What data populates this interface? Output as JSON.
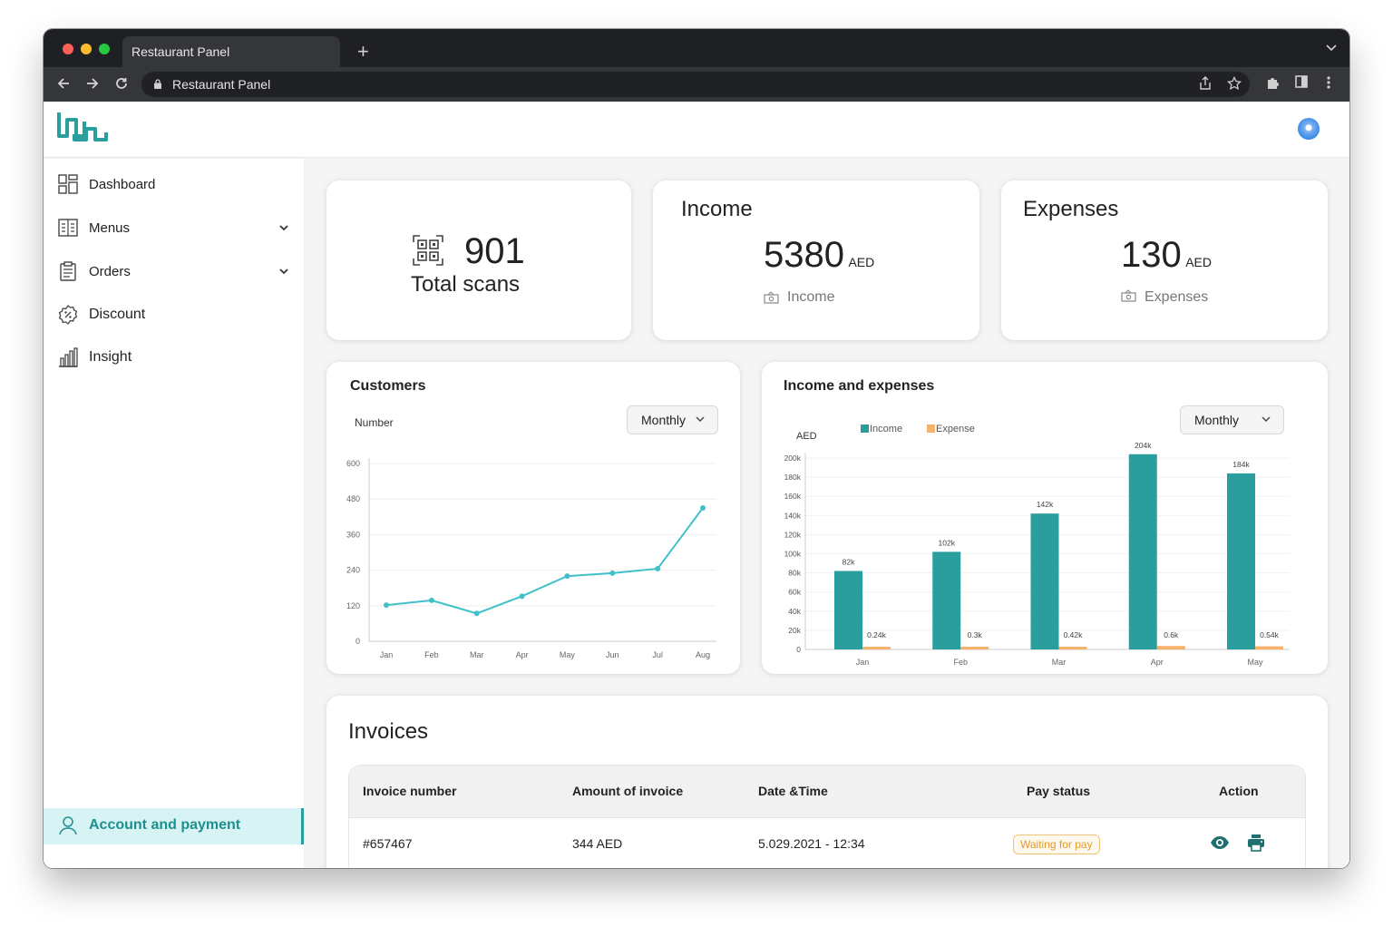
{
  "browser": {
    "tab_title": "Restaurant Panel",
    "url": "Restaurant Panel",
    "new_tab": "+",
    "tab_menu": "⌄"
  },
  "sidebar": {
    "items": [
      {
        "label": "Dashboard",
        "icon": "dashboard-icon",
        "has_chevron": false
      },
      {
        "label": "Menus",
        "icon": "menu-book-icon",
        "has_chevron": true
      },
      {
        "label": "Orders",
        "icon": "clipboard-icon",
        "has_chevron": true
      },
      {
        "label": "Discount",
        "icon": "discount-badge-icon",
        "has_chevron": false
      },
      {
        "label": "Insight",
        "icon": "bar-chart-icon",
        "has_chevron": false
      }
    ],
    "account": {
      "label": "Account and payment",
      "icon": "user-icon"
    }
  },
  "stats": {
    "scans": {
      "value": "901",
      "label": "Total scans"
    },
    "income": {
      "title": "Income",
      "value": "5380",
      "unit": "AED",
      "caption": "Income"
    },
    "expenses": {
      "title": "Expenses",
      "value": "130",
      "unit": "AED",
      "caption": "Expenses"
    }
  },
  "customers_card": {
    "title": "Customers",
    "period": "Monthly"
  },
  "income_card": {
    "title": "Income and expenses",
    "period": "Monthly"
  },
  "chart_data": [
    {
      "type": "line",
      "title": "Customers",
      "ylabel": "Number",
      "categories": [
        "Jan",
        "Feb",
        "Mar",
        "Apr",
        "May",
        "Jun",
        "Jul",
        "Aug"
      ],
      "values": [
        122,
        138,
        94,
        152,
        220,
        230,
        245,
        450
      ],
      "yticks": [
        0,
        120,
        240,
        360,
        480,
        600
      ],
      "ylim": [
        0,
        600
      ],
      "color": "#3fc1c9"
    },
    {
      "type": "bar",
      "title": "Income and expenses",
      "ylabel": "AED",
      "categories": [
        "Jan",
        "Feb",
        "Mar",
        "Apr",
        "May"
      ],
      "yticks": [
        "0",
        "20k",
        "40k",
        "60k",
        "80k",
        "100k",
        "120k",
        "140k",
        "160k",
        "180k",
        "200k"
      ],
      "ylim": [
        0,
        200000
      ],
      "legend_position": "top",
      "series": [
        {
          "name": "Income",
          "color": "#2a9d9d",
          "values": [
            82000,
            102000,
            142000,
            204000,
            184000
          ],
          "labels": [
            "82k",
            "102k",
            "142k",
            "204k",
            "184k"
          ]
        },
        {
          "name": "Expense",
          "color": "#f6b26b",
          "values": [
            240,
            300,
            420,
            600,
            540
          ],
          "labels": [
            "0.24k",
            "0.3k",
            "0.42k",
            "0.6k",
            "0.54k"
          ]
        }
      ]
    }
  ],
  "invoices": {
    "title": "Invoices",
    "columns": [
      "Invoice number",
      "Amount of invoice",
      "Date &Time",
      "Pay status",
      "Action"
    ],
    "rows": [
      {
        "number": "#657467",
        "amount": "344 AED",
        "datetime": "5.029.2021 - 12:34",
        "status": "Waiting for pay"
      }
    ]
  }
}
